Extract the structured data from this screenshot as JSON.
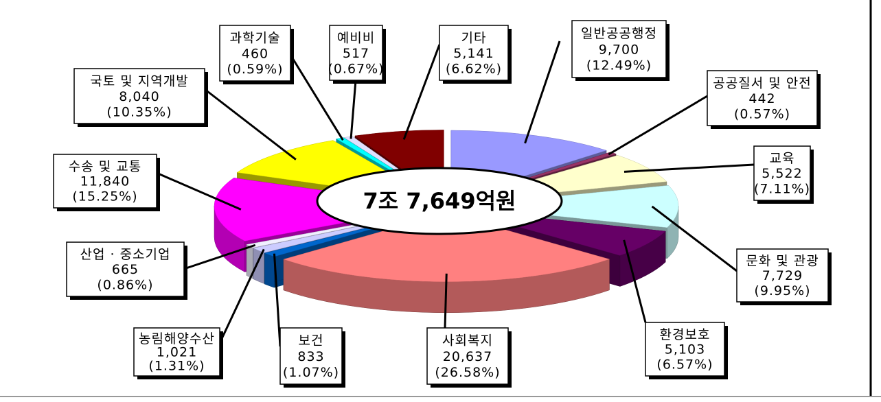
{
  "chart_data": {
    "type": "pie3d",
    "center_label": "7조 7,649억원",
    "categories": [
      "일반공공행정",
      "공공질서 및 안전",
      "교육",
      "문화 및 관광",
      "환경보호",
      "사회복지",
      "보건",
      "농림해양수산",
      "산업 · 중소기업",
      "수송 및 교통",
      "국토 및 지역개발",
      "과학기술",
      "예비비",
      "기타"
    ],
    "values": [
      9700,
      442,
      5522,
      7729,
      5103,
      20637,
      833,
      1021,
      665,
      11840,
      8040,
      460,
      517,
      5141
    ],
    "value_labels": [
      "9,700",
      "442",
      "5,522",
      "7,729",
      "5,103",
      "20,637",
      "833",
      "1,021",
      "665",
      "11,840",
      "8,040",
      "460",
      "517",
      "5,141"
    ],
    "percents": [
      12.49,
      0.57,
      7.11,
      9.95,
      6.57,
      26.58,
      1.07,
      1.31,
      0.86,
      15.25,
      10.35,
      0.59,
      0.67,
      6.62
    ],
    "percent_labels": [
      "(12.49%)",
      "(0.57%)",
      "(7.11%)",
      "(9.95%)",
      "(6.57%)",
      "(26.58%)",
      "(1.07%)",
      "(1.31%)",
      "(0.86%)",
      "(15.25%)",
      "(10.35%)",
      "(0.59%)",
      "(0.67%)",
      "(6.62%)"
    ],
    "colors": [
      "#9999ff",
      "#993366",
      "#ffffcc",
      "#ccffff",
      "#660066",
      "#ff8080",
      "#0066cc",
      "#ccccff",
      "#f0f0ff",
      "#ff00ff",
      "#ffff00",
      "#00ffff",
      "#e0e0ff",
      "#800000"
    ]
  }
}
